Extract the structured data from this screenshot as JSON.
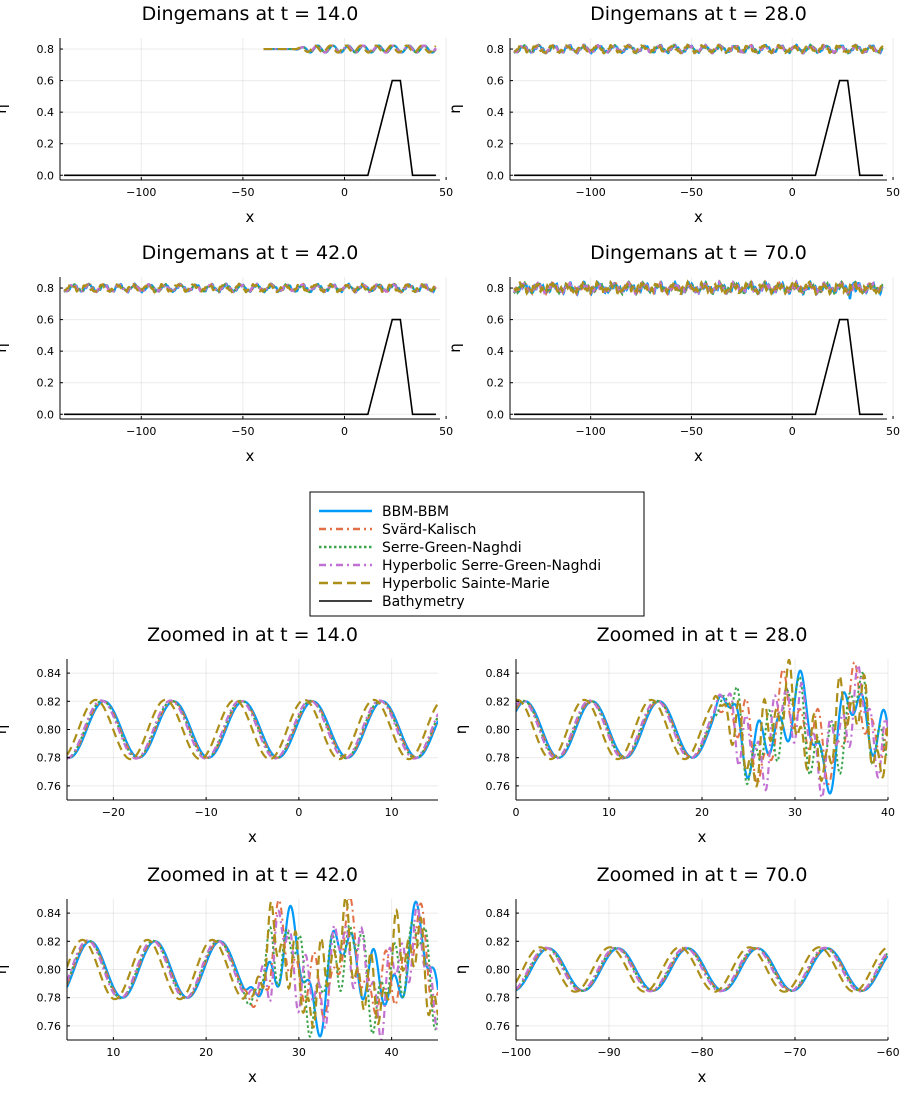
{
  "colors": {
    "bbm": "#009af9",
    "svard": "#e26f46",
    "sgn": "#3da44d",
    "hsgn": "#c271d2",
    "hsm": "#ac8e18",
    "bathy": "#000000"
  },
  "legend": {
    "entries": [
      {
        "label": "BBM-BBM",
        "style": "solid",
        "color": "#009af9"
      },
      {
        "label": "Svärd-Kalisch",
        "style": "dashdot",
        "color": "#e26f46"
      },
      {
        "label": "Serre-Green-Naghdi",
        "style": "dot",
        "color": "#3da44d"
      },
      {
        "label": "Hyperbolic Serre-Green-Naghdi",
        "style": "dashdot",
        "color": "#c271d2"
      },
      {
        "label": "Hyperbolic Sainte-Marie",
        "style": "dash",
        "color": "#ac8e18"
      },
      {
        "label": "Bathymetry",
        "style": "solid",
        "color": "#000000"
      }
    ]
  },
  "chart_data": [
    {
      "type": "line",
      "kind": "full",
      "title": "Dingemans at t = 14.0",
      "xlabel": "x",
      "ylabel": "η",
      "xlim": [
        -140,
        47
      ],
      "ylim": [
        -0.03,
        0.87
      ],
      "xticks": [
        -100,
        -50,
        0,
        50
      ],
      "xticklabels": [
        "−100",
        "−50",
        "0",
        "50"
      ],
      "yticks": [
        0.0,
        0.2,
        0.4,
        0.6,
        0.8
      ],
      "yticklabels": [
        "0.0",
        "0.2",
        "0.4",
        "0.6",
        "0.8"
      ],
      "wave_start": -40,
      "wave_end": 45,
      "amplitude": 0.022,
      "wavelength": 7.5,
      "bathymetry": {
        "x": [
          -138,
          11.5,
          23.5,
          27.5,
          33.5,
          45
        ],
        "y": [
          0,
          0,
          0.6,
          0.6,
          0,
          0
        ]
      }
    },
    {
      "type": "line",
      "kind": "full",
      "title": "Dingemans at t = 28.0",
      "xlabel": "x",
      "ylabel": "η",
      "xlim": [
        -140,
        47
      ],
      "ylim": [
        -0.03,
        0.87
      ],
      "xticks": [
        -100,
        -50,
        0,
        50
      ],
      "xticklabels": [
        "−100",
        "−50",
        "0",
        "50"
      ],
      "yticks": [
        0.0,
        0.2,
        0.4,
        0.6,
        0.8
      ],
      "yticklabels": [
        "0.0",
        "0.2",
        "0.4",
        "0.6",
        "0.8"
      ],
      "wave_start": -138,
      "wave_end": 45,
      "amplitude": 0.022,
      "wavelength": 7.5,
      "bathymetry": {
        "x": [
          -138,
          11.5,
          23.5,
          27.5,
          33.5,
          45
        ],
        "y": [
          0,
          0,
          0.6,
          0.6,
          0,
          0
        ]
      }
    },
    {
      "type": "line",
      "kind": "full",
      "title": "Dingemans at t = 42.0",
      "xlabel": "x",
      "ylabel": "η",
      "xlim": [
        -140,
        47
      ],
      "ylim": [
        -0.03,
        0.87
      ],
      "xticks": [
        -100,
        -50,
        0,
        50
      ],
      "xticklabels": [
        "−100",
        "−50",
        "0",
        "50"
      ],
      "yticks": [
        0.0,
        0.2,
        0.4,
        0.6,
        0.8
      ],
      "yticklabels": [
        "0.0",
        "0.2",
        "0.4",
        "0.6",
        "0.8"
      ],
      "wave_start": -138,
      "wave_end": 45,
      "amplitude": 0.022,
      "wavelength": 7.5,
      "bathymetry": {
        "x": [
          -138,
          11.5,
          23.5,
          27.5,
          33.5,
          45
        ],
        "y": [
          0,
          0,
          0.6,
          0.6,
          0,
          0
        ]
      }
    },
    {
      "type": "line",
      "kind": "full",
      "title": "Dingemans at t = 70.0",
      "xlabel": "x",
      "ylabel": "η",
      "xlim": [
        -140,
        47
      ],
      "ylim": [
        -0.03,
        0.87
      ],
      "xticks": [
        -100,
        -50,
        0,
        50
      ],
      "xticklabels": [
        "−100",
        "−50",
        "0",
        "50"
      ],
      "yticks": [
        0.0,
        0.2,
        0.4,
        0.6,
        0.8
      ],
      "yticklabels": [
        "0.0",
        "0.2",
        "0.4",
        "0.6",
        "0.8"
      ],
      "wave_start": -138,
      "wave_end": 45,
      "amplitude": 0.022,
      "wavelength": 7.5,
      "bathymetry": {
        "x": [
          -138,
          11.5,
          23.5,
          27.5,
          33.5,
          45
        ],
        "y": [
          0,
          0,
          0.6,
          0.6,
          0,
          0
        ]
      }
    },
    {
      "type": "line",
      "kind": "zoom",
      "title": "Zoomed in at t = 14.0",
      "xlabel": "x",
      "ylabel": "η",
      "xlim": [
        -25,
        15
      ],
      "ylim": [
        0.75,
        0.85
      ],
      "xticks": [
        -20,
        -10,
        0,
        10
      ],
      "xticklabels": [
        "−20",
        "−10",
        "0",
        "10"
      ],
      "yticks": [
        0.76,
        0.78,
        0.8,
        0.82,
        0.84
      ],
      "yticklabels": [
        "0.76",
        "0.78",
        "0.80",
        "0.82",
        "0.84"
      ],
      "wavelength": 7.5,
      "amplitude": 0.02,
      "phase_x": -21,
      "chaos_start": 999,
      "chaos_amp": 0
    },
    {
      "type": "line",
      "kind": "zoom",
      "title": "Zoomed in at t = 28.0",
      "xlabel": "x",
      "ylabel": "η",
      "xlim": [
        0,
        40
      ],
      "ylim": [
        0.75,
        0.85
      ],
      "xticks": [
        0,
        10,
        20,
        30,
        40
      ],
      "xticklabels": [
        "0",
        "10",
        "20",
        "30",
        "40"
      ],
      "yticks": [
        0.76,
        0.78,
        0.8,
        0.82,
        0.84
      ],
      "yticklabels": [
        "0.76",
        "0.78",
        "0.80",
        "0.82",
        "0.84"
      ],
      "wavelength": 7.2,
      "amplitude": 0.02,
      "phase_x": 1,
      "chaos_start": 21,
      "chaos_amp": 0.03
    },
    {
      "type": "line",
      "kind": "zoom",
      "title": "Zoomed in at t = 42.0",
      "xlabel": "x",
      "ylabel": "η",
      "xlim": [
        5,
        45
      ],
      "ylim": [
        0.75,
        0.85
      ],
      "xticks": [
        10,
        20,
        30,
        40
      ],
      "xticklabels": [
        "10",
        "20",
        "30",
        "40"
      ],
      "yticks": [
        0.76,
        0.78,
        0.8,
        0.82,
        0.84
      ],
      "yticklabels": [
        "0.76",
        "0.78",
        "0.80",
        "0.82",
        "0.84"
      ],
      "wavelength": 7.0,
      "amplitude": 0.02,
      "phase_x": 7.5,
      "chaos_start": 24,
      "chaos_amp": 0.032
    },
    {
      "type": "line",
      "kind": "zoom",
      "title": "Zoomed in at t = 70.0",
      "xlabel": "x",
      "ylabel": "η",
      "xlim": [
        -100,
        -60
      ],
      "ylim": [
        0.75,
        0.85
      ],
      "xticks": [
        -100,
        -90,
        -80,
        -70,
        -60
      ],
      "xticklabels": [
        "−100",
        "−90",
        "−80",
        "−70",
        "−60"
      ],
      "yticks": [
        0.76,
        0.78,
        0.8,
        0.82,
        0.84
      ],
      "yticklabels": [
        "0.76",
        "0.78",
        "0.80",
        "0.82",
        "0.84"
      ],
      "wavelength": 7.5,
      "amplitude": 0.015,
      "phase_x": -96.5,
      "chaos_start": 999,
      "chaos_amp": 0
    }
  ]
}
